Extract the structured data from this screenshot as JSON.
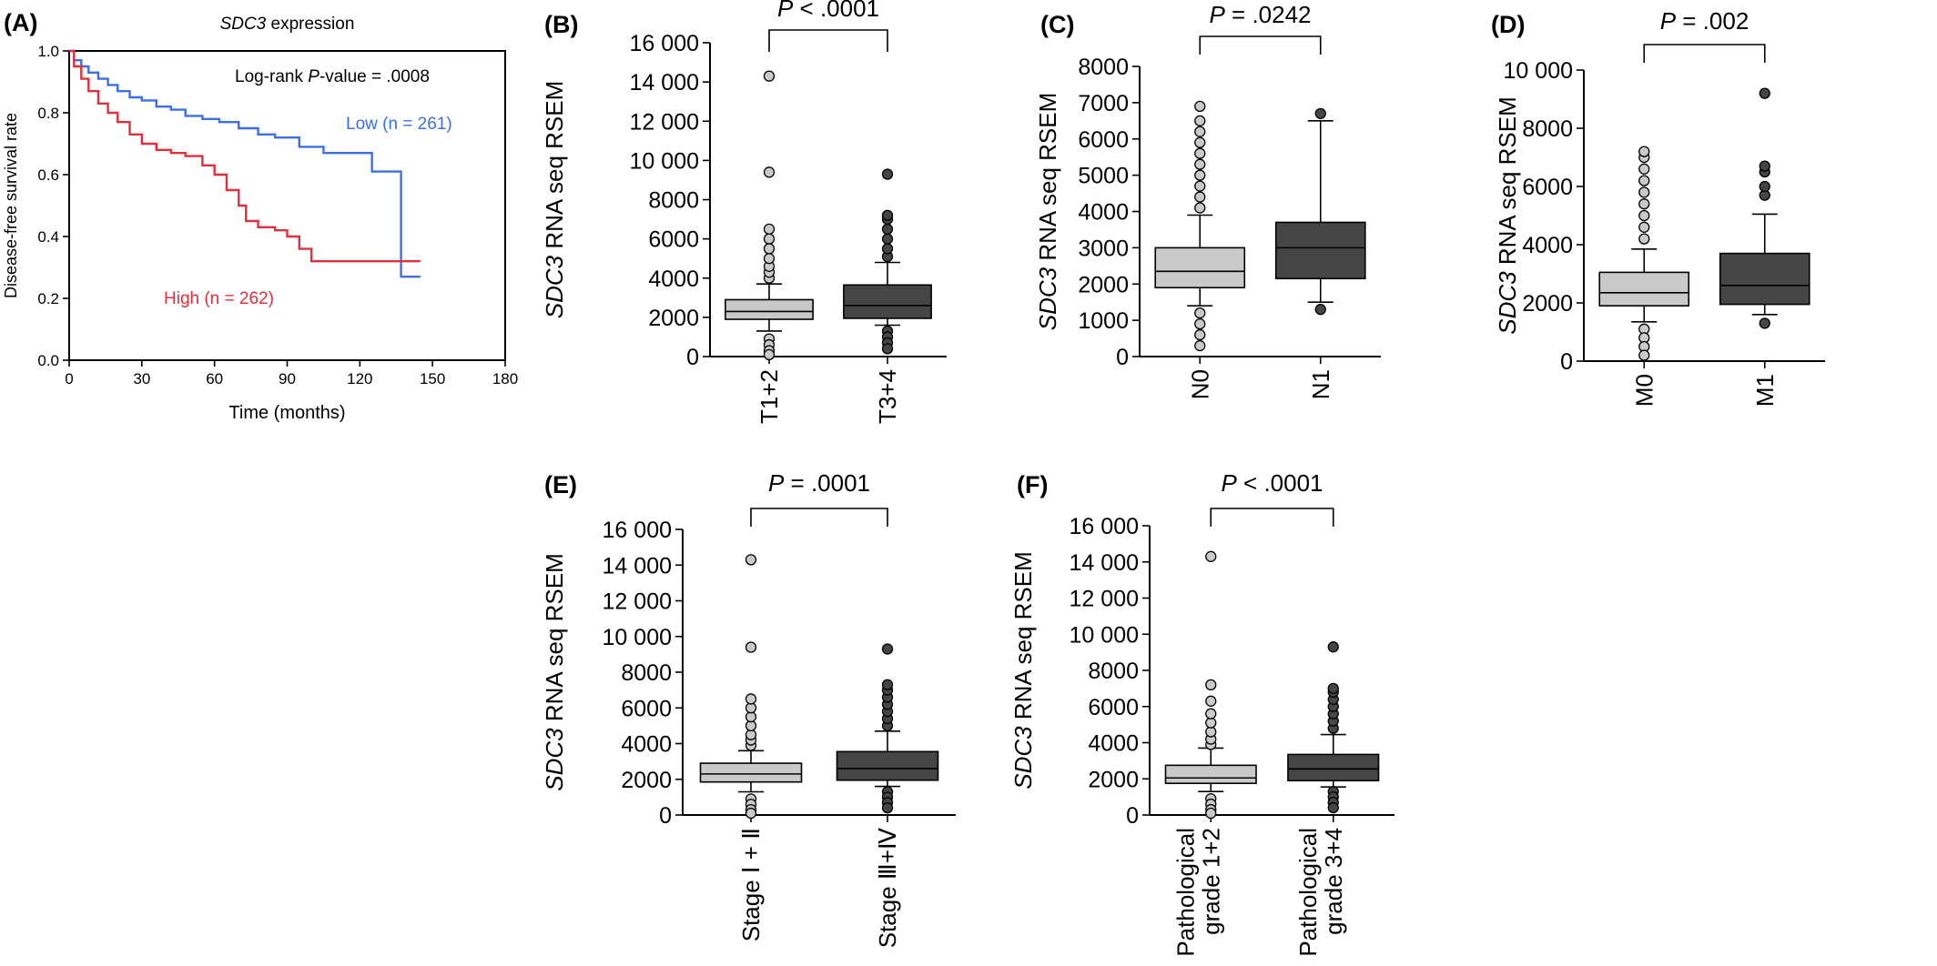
{
  "colors": {
    "low": "#3b6fe3",
    "high": "#e0303f",
    "box_light": "#c9c9c9",
    "box_dark": "#454545"
  },
  "chart_data": [
    {
      "id": "A",
      "panel": "(A)",
      "type": "line",
      "title": "SDC3 expression",
      "xlabel": "Time (months)",
      "ylabel": "Disease-free survival rate",
      "xlim": [
        0,
        180
      ],
      "ylim": [
        0,
        1
      ],
      "xticks": [
        "0",
        "30",
        "60",
        "90",
        "120",
        "150",
        "180"
      ],
      "yticks": [
        "0.0",
        "0.2",
        "0.4",
        "0.6",
        "0.8",
        "1.0"
      ],
      "annotation": "Log-rank P-value = .0008",
      "series": [
        {
          "name": "Low (n = 261)",
          "color": "#3b6fe3",
          "x": [
            0,
            2,
            5,
            8,
            12,
            16,
            20,
            25,
            30,
            36,
            42,
            48,
            55,
            62,
            70,
            78,
            85,
            95,
            105,
            116,
            125,
            134,
            137,
            145
          ],
          "y": [
            1.0,
            0.97,
            0.95,
            0.93,
            0.91,
            0.89,
            0.87,
            0.85,
            0.84,
            0.82,
            0.81,
            0.79,
            0.78,
            0.77,
            0.75,
            0.73,
            0.72,
            0.69,
            0.67,
            0.67,
            0.61,
            0.61,
            0.27,
            0.27
          ]
        },
        {
          "name": "High (n = 262)",
          "color": "#e0303f",
          "x": [
            0,
            2,
            5,
            8,
            12,
            16,
            20,
            25,
            30,
            36,
            42,
            48,
            55,
            60,
            65,
            70,
            73,
            78,
            85,
            90,
            95,
            100,
            110,
            120,
            130,
            145
          ],
          "y": [
            1.0,
            0.95,
            0.91,
            0.87,
            0.83,
            0.8,
            0.77,
            0.73,
            0.7,
            0.68,
            0.67,
            0.66,
            0.63,
            0.6,
            0.55,
            0.5,
            0.45,
            0.43,
            0.42,
            0.4,
            0.36,
            0.32,
            0.32,
            0.32,
            0.32,
            0.32
          ]
        }
      ]
    },
    {
      "id": "B",
      "panel": "(B)",
      "type": "box",
      "ylabel_italic": "SDC3",
      "ylabel_rest": " RNA seq RSEM",
      "ylim": [
        0,
        16000
      ],
      "yticks": [
        0,
        2000,
        4000,
        6000,
        8000,
        10000,
        12000,
        14000,
        16000
      ],
      "ytick_labels": [
        "0",
        "2000",
        "4000",
        "6000",
        "8000",
        "10 000",
        "12 000",
        "14 000",
        "16 000"
      ],
      "pvalue_italic": "P",
      "pvalue_rest": " < .0001",
      "groups": [
        {
          "label": "T1+2",
          "q1": 1900,
          "median": 2300,
          "q3": 2900,
          "whisker_low": 1300,
          "whisker_high": 3700,
          "outliers_high": [
            4000,
            4300,
            4600,
            5000,
            5500,
            6000,
            6500,
            9400,
            14300
          ],
          "outliers_low": [
            900,
            600,
            300,
            100
          ]
        },
        {
          "label": "T3+4",
          "q1": 1950,
          "median": 2600,
          "q3": 3650,
          "whisker_low": 1600,
          "whisker_high": 4800,
          "outliers_high": [
            5100,
            5500,
            6000,
            6500,
            7000,
            7200,
            9300
          ],
          "outliers_low": [
            1300,
            1000,
            700,
            400
          ]
        }
      ]
    },
    {
      "id": "C",
      "panel": "(C)",
      "type": "box",
      "ylabel_italic": "SDC3",
      "ylabel_rest": " RNA seq RSEM",
      "ylim": [
        0,
        8000
      ],
      "yticks": [
        0,
        1000,
        2000,
        3000,
        4000,
        5000,
        6000,
        7000,
        8000
      ],
      "ytick_labels": [
        "0",
        "1000",
        "2000",
        "3000",
        "4000",
        "5000",
        "6000",
        "7000",
        "8000"
      ],
      "pvalue_italic": "P",
      "pvalue_rest": " = .0242",
      "groups": [
        {
          "label": "N0",
          "q1": 1900,
          "median": 2350,
          "q3": 3000,
          "whisker_low": 1400,
          "whisker_high": 3900,
          "outliers_high": [
            4100,
            4400,
            4700,
            5000,
            5300,
            5600,
            5900,
            6200,
            6500,
            6900
          ],
          "outliers_low": [
            1200,
            900,
            600,
            300
          ]
        },
        {
          "label": "N1",
          "q1": 2150,
          "median": 3000,
          "q3": 3700,
          "whisker_low": 1500,
          "whisker_high": 6500,
          "outliers_high": [
            6700
          ],
          "outliers_low": [
            1300
          ]
        }
      ]
    },
    {
      "id": "D",
      "panel": "(D)",
      "type": "box",
      "ylabel_italic": "SDC3",
      "ylabel_rest": " RNA seq RSEM",
      "ylim": [
        0,
        10000
      ],
      "yticks": [
        0,
        2000,
        4000,
        6000,
        8000,
        10000
      ],
      "ytick_labels": [
        "0",
        "2000",
        "4000",
        "6000",
        "8000",
        "10 000"
      ],
      "pvalue_italic": "P",
      "pvalue_rest": " = .002",
      "groups": [
        {
          "label": "M0",
          "q1": 1900,
          "median": 2350,
          "q3": 3050,
          "whisker_low": 1350,
          "whisker_high": 3850,
          "outliers_high": [
            4200,
            4600,
            5000,
            5400,
            5800,
            6200,
            6600,
            7000,
            7200
          ],
          "outliers_low": [
            1100,
            800,
            500,
            200
          ]
        },
        {
          "label": "M1",
          "q1": 1950,
          "median": 2600,
          "q3": 3700,
          "whisker_low": 1600,
          "whisker_high": 5050,
          "outliers_high": [
            5700,
            6000,
            6500,
            6700,
            9200
          ],
          "outliers_low": [
            1300
          ]
        }
      ]
    },
    {
      "id": "E",
      "panel": "(E)",
      "type": "box",
      "ylabel_italic": "SDC3",
      "ylabel_rest": " RNA seq RSEM",
      "ylim": [
        0,
        16000
      ],
      "yticks": [
        0,
        2000,
        4000,
        6000,
        8000,
        10000,
        12000,
        14000,
        16000
      ],
      "ytick_labels": [
        "0",
        "2000",
        "4000",
        "6000",
        "8000",
        "10 000",
        "12 000",
        "14 000",
        "16 000"
      ],
      "pvalue_italic": "P",
      "pvalue_rest": " = .0001",
      "groups": [
        {
          "label": "Stage Ⅰ + Ⅱ",
          "q1": 1850,
          "median": 2300,
          "q3": 2900,
          "whisker_low": 1300,
          "whisker_high": 3600,
          "outliers_high": [
            3900,
            4200,
            4500,
            5000,
            5500,
            6000,
            6500,
            9400,
            14300
          ],
          "outliers_low": [
            900,
            600,
            300,
            100
          ]
        },
        {
          "label": "Stage Ⅲ+Ⅳ",
          "q1": 1950,
          "median": 2600,
          "q3": 3550,
          "whisker_low": 1600,
          "whisker_high": 4700,
          "outliers_high": [
            5000,
            5400,
            5800,
            6200,
            6600,
            7000,
            7300,
            9300
          ],
          "outliers_low": [
            1300,
            1000,
            700,
            400
          ]
        }
      ]
    },
    {
      "id": "F",
      "panel": "(F)",
      "type": "box",
      "ylabel_italic": "SDC3",
      "ylabel_rest": " RNA seq RSEM",
      "ylim": [
        0,
        16000
      ],
      "yticks": [
        0,
        2000,
        4000,
        6000,
        8000,
        10000,
        12000,
        14000,
        16000
      ],
      "ytick_labels": [
        "0",
        "2000",
        "4000",
        "6000",
        "8000",
        "10 000",
        "12 000",
        "14 000",
        "16 000"
      ],
      "pvalue_italic": "P",
      "pvalue_rest": " < .0001",
      "groups": [
        {
          "label": "Pathological grade 1+2",
          "label_lines": [
            "Pathological",
            "grade 1+2"
          ],
          "q1": 1750,
          "median": 2050,
          "q3": 2750,
          "whisker_low": 1300,
          "whisker_high": 3700,
          "outliers_high": [
            3900,
            4200,
            4600,
            5100,
            5600,
            6300,
            7200,
            14300
          ],
          "outliers_low": [
            900,
            600,
            300,
            100
          ]
        },
        {
          "label": "Pathological grade 3+4",
          "label_lines": [
            "Pathological",
            "grade 3+4"
          ],
          "q1": 1900,
          "median": 2550,
          "q3": 3350,
          "whisker_low": 1550,
          "whisker_high": 4450,
          "outliers_high": [
            4800,
            5200,
            5600,
            6000,
            6400,
            6800,
            7000,
            9300
          ],
          "outliers_low": [
            1300,
            1000,
            700,
            400
          ]
        }
      ]
    }
  ]
}
